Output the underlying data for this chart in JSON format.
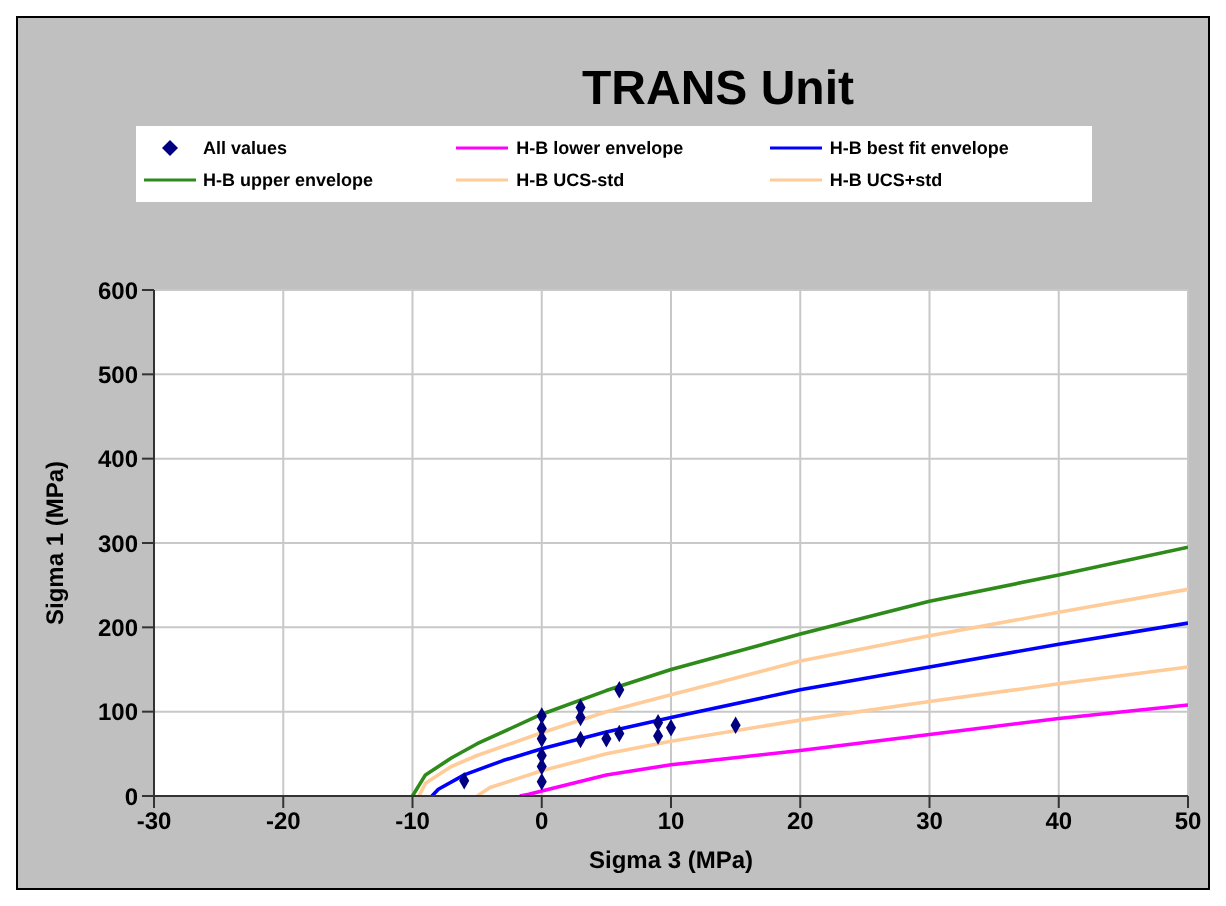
{
  "chart_data": {
    "type": "line",
    "title": "TRANS Unit",
    "xlabel": "Sigma 3 (MPa)",
    "ylabel": "Sigma 1 (MPa)",
    "xlim": [
      -30,
      50
    ],
    "xticks": [
      -30,
      -20,
      -10,
      0,
      10,
      20,
      30,
      40,
      50
    ],
    "ylim": [
      0,
      600
    ],
    "yticks": [
      0,
      100,
      200,
      300,
      400,
      500,
      600
    ],
    "grid": true,
    "legend": "top",
    "series": [
      {
        "name": "All values",
        "type": "scatter",
        "marker": "diamond",
        "color": "#000080",
        "x": [
          -6,
          0,
          0,
          0,
          0,
          0,
          0,
          3,
          3,
          3,
          5,
          6,
          6,
          9,
          9,
          10,
          15
        ],
        "values": [
          18,
          95,
          80,
          68,
          48,
          35,
          17,
          105,
          93,
          67,
          68,
          126,
          74,
          87,
          71,
          81,
          84
        ]
      },
      {
        "name": "H-B lower envelope",
        "color": "#ff00ff",
        "marker": "none",
        "x": [
          -1.7,
          -1,
          0,
          5,
          10,
          20,
          30,
          40,
          50
        ],
        "values": [
          0,
          2,
          6,
          25,
          37,
          54,
          73,
          92,
          108
        ]
      },
      {
        "name": "H-B best fit envelope",
        "color": "#0000ff",
        "marker": "none",
        "x": [
          -8.5,
          -8,
          -6,
          -3,
          0,
          5,
          10,
          20,
          30,
          40,
          50
        ],
        "values": [
          0,
          8,
          25,
          42,
          56,
          76,
          93,
          126,
          153,
          180,
          205
        ]
      },
      {
        "name": "H-B upper envelope",
        "color": "#2e8b1a",
        "marker": "none",
        "x": [
          -10,
          -9,
          -7,
          -5,
          0,
          5,
          10,
          20,
          30,
          40,
          50
        ],
        "values": [
          0,
          25,
          45,
          62,
          97,
          125,
          150,
          192,
          231,
          262,
          295
        ]
      },
      {
        "name": "H-B UCS-std",
        "color": "#ffcc99",
        "marker": "none",
        "x": [
          -5,
          -4,
          -2,
          0,
          5,
          10,
          20,
          30,
          40,
          50
        ],
        "values": [
          0,
          10,
          20,
          30,
          50,
          65,
          90,
          112,
          133,
          153
        ]
      },
      {
        "name": "H-B UCS+std",
        "color": "#ffcc99",
        "marker": "none",
        "x": [
          -9.5,
          -9,
          -7,
          -5,
          0,
          5,
          10,
          20,
          30,
          40,
          50
        ],
        "values": [
          0,
          15,
          35,
          48,
          75,
          100,
          120,
          160,
          190,
          218,
          245
        ]
      }
    ]
  }
}
